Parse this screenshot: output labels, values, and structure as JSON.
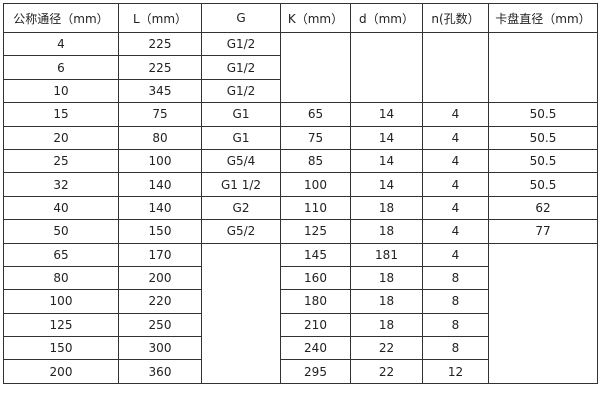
{
  "headers": [
    "公称通径（mm）",
    "L（mm）",
    "G",
    "K（mm）",
    "d（mm）",
    "n(孔数）",
    "卡盘直径（mm）"
  ],
  "rows": [
    [
      "4",
      "225",
      "G1/2",
      "",
      "",
      "",
      ""
    ],
    [
      "6",
      "225",
      "G1/2",
      "",
      "",
      "",
      ""
    ],
    [
      "10",
      "345",
      "G1/2",
      "",
      "",
      "",
      ""
    ],
    [
      "15",
      "75",
      "G1",
      "65",
      "14",
      "4",
      "50.5"
    ],
    [
      "20",
      "80",
      "G1",
      "75",
      "14",
      "4",
      "50.5"
    ],
    [
      "25",
      "100",
      "G5/4",
      "85",
      "14",
      "4",
      "50.5"
    ],
    [
      "32",
      "140",
      "G1  1/2",
      "100",
      "14",
      "4",
      "50.5"
    ],
    [
      "40",
      "140",
      "G2",
      "110",
      "18",
      "4",
      "62"
    ],
    [
      "50",
      "150",
      "G5/2",
      "125",
      "18",
      "4",
      "77"
    ],
    [
      "65",
      "170",
      "",
      "145",
      "181",
      "4",
      ""
    ],
    [
      "80",
      "200",
      "",
      "160",
      "18",
      "8",
      ""
    ],
    [
      "100",
      "220",
      "",
      "180",
      "18",
      "8",
      ""
    ],
    [
      "125",
      "250",
      "",
      "210",
      "18",
      "8",
      ""
    ],
    [
      "150",
      "300",
      "",
      "240",
      "22",
      "8",
      ""
    ],
    [
      "200",
      "360",
      "",
      "295",
      "22",
      "12",
      ""
    ]
  ]
}
